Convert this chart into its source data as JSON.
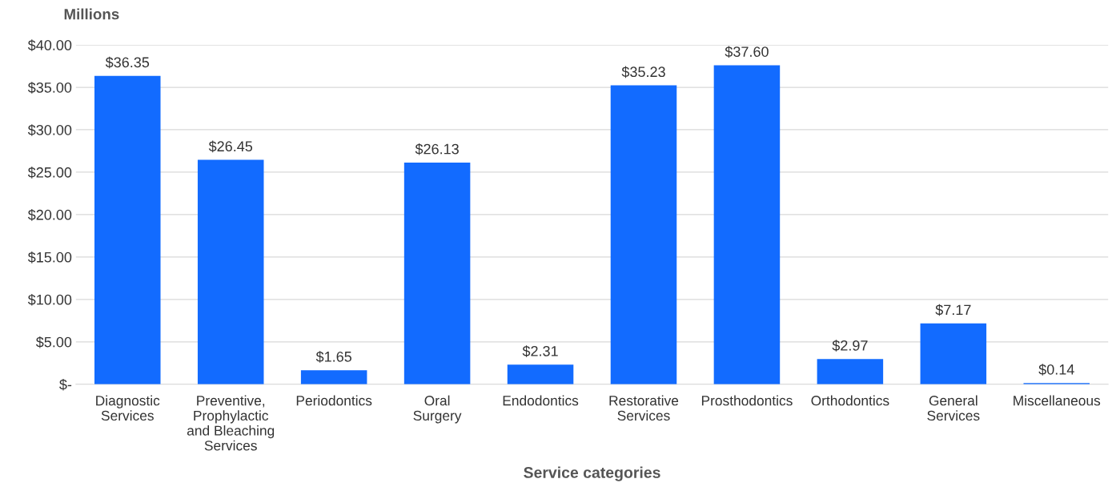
{
  "chart_data": {
    "type": "bar",
    "ylabel": "Millions",
    "xlabel": "Service categories",
    "categories": [
      "Diagnostic\nServices",
      "Preventive,\nProphylactic\nand Bleaching\nServices",
      "Periodontics",
      "Oral\nSurgery",
      "Endodontics",
      "Restorative\nServices",
      "Prosthodontics",
      "Orthodontics",
      "General\nServices",
      "Miscellaneous"
    ],
    "values": [
      36.35,
      26.45,
      1.65,
      26.13,
      2.31,
      35.23,
      37.6,
      2.97,
      7.17,
      0.14
    ],
    "value_labels": [
      "$36.35",
      "$26.45",
      "$1.65",
      "$26.13",
      "$2.31",
      "$35.23",
      "$37.60",
      "$2.97",
      "$7.17",
      "$0.14"
    ],
    "color": "#126bff",
    "ylim": [
      0,
      40
    ],
    "yticks": [
      {
        "value": 0,
        "label": "$-"
      },
      {
        "value": 5,
        "label": "$5.00"
      },
      {
        "value": 10,
        "label": "$10.00"
      },
      {
        "value": 15,
        "label": "$15.00"
      },
      {
        "value": 20,
        "label": "$20.00"
      },
      {
        "value": 25,
        "label": "$25.00"
      },
      {
        "value": 30,
        "label": "$30.00"
      },
      {
        "value": 35,
        "label": "$35.00"
      },
      {
        "value": 40,
        "label": "$40.00"
      }
    ],
    "grid": "y"
  }
}
